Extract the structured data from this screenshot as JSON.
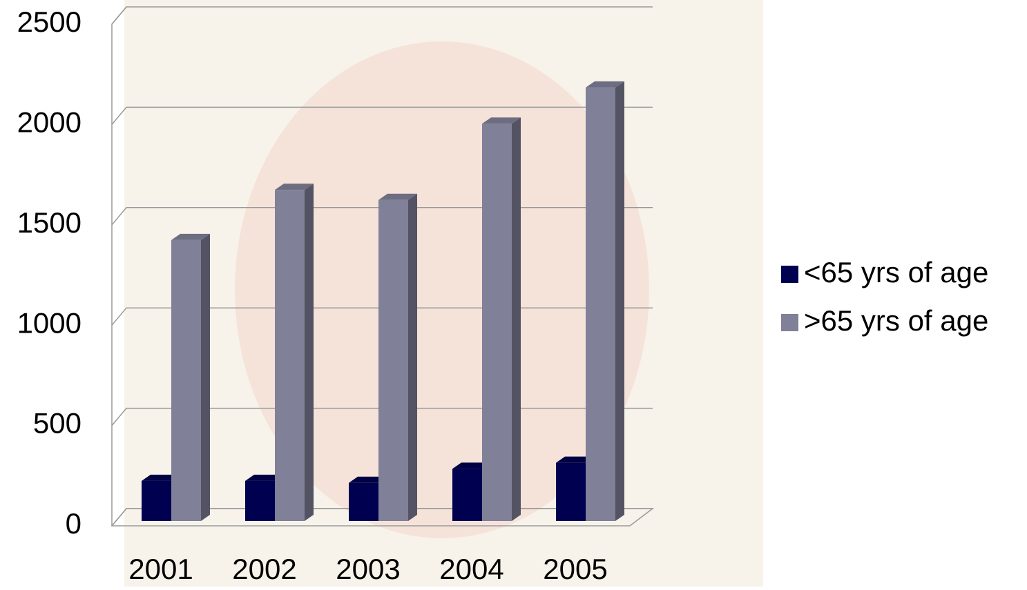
{
  "chart_data": {
    "type": "bar3d",
    "categories": [
      "2001",
      "2002",
      "2003",
      "2004",
      "2005"
    ],
    "series": [
      {
        "name": "<65 yrs of age",
        "color": "#000050",
        "values": [
          200,
          200,
          190,
          260,
          290
        ]
      },
      {
        "name": ">65 yrs of age",
        "color": "#808099",
        "values": [
          1400,
          1650,
          1600,
          1980,
          2160
        ]
      }
    ],
    "ylim": [
      0,
      2500
    ],
    "yticks": [
      0,
      500,
      1000,
      1500,
      2000,
      2500
    ],
    "grid": true,
    "legend": "right"
  }
}
